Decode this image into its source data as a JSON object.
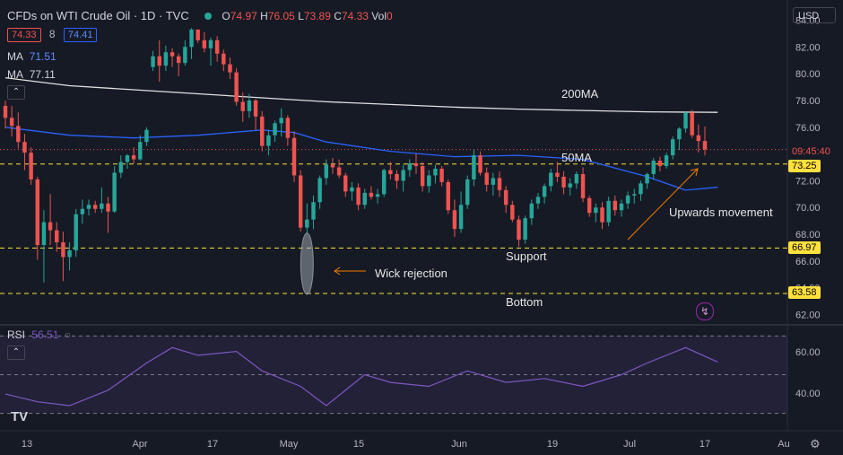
{
  "header": {
    "symbol": "CFDs on WTI Crude Oil · 1D · TVC",
    "open_label": "O",
    "open": "74.97",
    "high_label": "H",
    "high": "76.05",
    "low_label": "L",
    "low": "73.89",
    "close_label": "C",
    "close": "74.33",
    "vol_label": "Vol",
    "vol": "0",
    "bid": "74.33",
    "spread": "8",
    "ask": "74.41",
    "ma1_label": "MA",
    "ma1_value": "71.51",
    "ma2_label": "MA",
    "ma2_value": "77.11",
    "currency": "USD"
  },
  "annotations": {
    "ma200": "200MA",
    "ma50": "50MA",
    "upwards": "Upwards movement",
    "wick": "Wick rejection",
    "support": "Support",
    "bottom": "Bottom"
  },
  "price_badges": {
    "last": "09:45:40",
    "l1": "73.25",
    "l2": "66.97",
    "l3": "63.58"
  },
  "rsi": {
    "label": "RSI",
    "value": "56.51",
    "levels": [
      "60.00",
      "40.00"
    ]
  },
  "colors": {
    "up": "#26a69a",
    "down": "#ef5350",
    "ma200": "#e0e0e0",
    "ma50": "#2962ff",
    "rsi": "#7e57c2",
    "level": "#ffe03d"
  },
  "chart_data": {
    "type": "candlestick",
    "y_ticks": [
      "84.00",
      "82.00",
      "80.00",
      "78.00",
      "76.00",
      "74.00",
      "72.00",
      "70.00",
      "68.00",
      "66.00",
      "64.00",
      "62.00"
    ],
    "ylim": [
      61.5,
      84.3
    ],
    "x_ticks": [
      "13",
      "Apr",
      "17",
      "May",
      "15",
      "Jun",
      "19",
      "Jul",
      "17",
      "Au"
    ],
    "horizontal_levels": [
      73.25,
      66.97,
      63.58
    ],
    "candles": [
      [
        77.6,
        78.0,
        75.9,
        76.7
      ],
      [
        76.7,
        77.6,
        75.3,
        76.1
      ],
      [
        76.1,
        77.1,
        74.4,
        74.9
      ],
      [
        74.9,
        75.5,
        72.8,
        74.1
      ],
      [
        74.1,
        74.5,
        71.7,
        72.1
      ],
      [
        72.1,
        72.3,
        66.1,
        67.2
      ],
      [
        67.2,
        69.8,
        64.4,
        68.9
      ],
      [
        68.9,
        71.0,
        67.2,
        68.3
      ],
      [
        68.3,
        68.9,
        66.7,
        67.4
      ],
      [
        67.4,
        68.2,
        64.5,
        66.3
      ],
      [
        66.3,
        67.4,
        65.3,
        66.8
      ],
      [
        66.8,
        69.9,
        66.3,
        69.5
      ],
      [
        69.5,
        70.6,
        68.8,
        69.9
      ],
      [
        69.9,
        70.6,
        69.4,
        70.2
      ],
      [
        70.2,
        70.5,
        69.6,
        69.9
      ],
      [
        69.9,
        71.5,
        69.6,
        70.3
      ],
      [
        70.3,
        70.8,
        68.1,
        69.7
      ],
      [
        69.7,
        73.1,
        69.6,
        72.6
      ],
      [
        72.6,
        73.9,
        72.2,
        73.4
      ],
      [
        73.4,
        74.0,
        72.9,
        73.9
      ],
      [
        73.9,
        74.5,
        73.3,
        73.6
      ],
      [
        73.6,
        75.4,
        73.5,
        74.9
      ],
      [
        74.9,
        76.0,
        74.6,
        75.8
      ],
      [
        80.5,
        81.7,
        80.2,
        81.3
      ],
      [
        81.3,
        82.5,
        79.4,
        80.6
      ],
      [
        80.6,
        82.1,
        80.2,
        81.6
      ],
      [
        81.6,
        81.9,
        80.5,
        81.3
      ],
      [
        81.3,
        81.5,
        79.8,
        80.8
      ],
      [
        80.8,
        82.5,
        80.6,
        82.0
      ],
      [
        82.0,
        83.4,
        81.1,
        83.3
      ],
      [
        83.3,
        83.3,
        82.3,
        82.5
      ],
      [
        82.5,
        83.1,
        81.6,
        81.9
      ],
      [
        81.9,
        82.7,
        80.6,
        82.5
      ],
      [
        82.5,
        82.8,
        80.9,
        81.5
      ],
      [
        81.5,
        81.8,
        80.2,
        80.7
      ],
      [
        80.7,
        81.2,
        79.6,
        80.1
      ],
      [
        80.1,
        80.4,
        77.6,
        77.9
      ],
      [
        77.9,
        78.6,
        76.4,
        77.2
      ],
      [
        77.2,
        78.5,
        76.7,
        78.0
      ],
      [
        78.0,
        78.1,
        75.8,
        76.8
      ],
      [
        76.8,
        77.2,
        74.2,
        74.6
      ],
      [
        74.6,
        75.8,
        73.9,
        75.4
      ],
      [
        75.4,
        76.5,
        74.9,
        76.3
      ],
      [
        76.3,
        77.4,
        75.3,
        76.7
      ],
      [
        76.7,
        76.9,
        74.6,
        75.2
      ],
      [
        75.2,
        75.7,
        71.9,
        72.4
      ],
      [
        72.4,
        72.8,
        68.2,
        68.5
      ],
      [
        68.5,
        70.3,
        68.1,
        69.1
      ],
      [
        69.1,
        70.9,
        68.4,
        70.4
      ],
      [
        70.4,
        72.4,
        69.9,
        72.2
      ],
      [
        72.2,
        73.6,
        71.7,
        73.2
      ],
      [
        73.2,
        73.7,
        72.5,
        73.0
      ],
      [
        73.0,
        73.6,
        72.2,
        72.4
      ],
      [
        72.4,
        72.6,
        70.8,
        71.2
      ],
      [
        71.2,
        71.9,
        70.5,
        71.5
      ],
      [
        71.5,
        71.8,
        69.8,
        70.2
      ],
      [
        70.2,
        71.4,
        69.9,
        71.1
      ],
      [
        71.1,
        71.6,
        70.6,
        70.8
      ],
      [
        70.8,
        71.4,
        70.3,
        71.0
      ],
      [
        71.0,
        72.9,
        70.8,
        72.8
      ],
      [
        72.8,
        73.4,
        72.1,
        72.5
      ],
      [
        72.5,
        72.8,
        71.4,
        72.0
      ],
      [
        72.0,
        73.2,
        71.2,
        72.8
      ],
      [
        72.8,
        73.6,
        72.3,
        73.3
      ],
      [
        73.3,
        74.0,
        72.5,
        73.1
      ],
      [
        73.1,
        73.4,
        71.2,
        71.6
      ],
      [
        71.6,
        72.8,
        71.1,
        72.4
      ],
      [
        72.4,
        73.2,
        71.8,
        72.9
      ],
      [
        72.9,
        73.1,
        71.6,
        71.9
      ],
      [
        71.9,
        72.1,
        69.5,
        69.8
      ],
      [
        69.8,
        70.6,
        67.8,
        68.4
      ],
      [
        68.4,
        71.2,
        68.1,
        70.2
      ],
      [
        70.2,
        72.4,
        69.9,
        72.1
      ],
      [
        72.1,
        74.3,
        71.6,
        73.9
      ],
      [
        73.9,
        74.2,
        72.4,
        72.6
      ],
      [
        72.6,
        73.0,
        71.2,
        71.7
      ],
      [
        71.7,
        72.6,
        70.9,
        72.2
      ],
      [
        72.2,
        72.7,
        70.8,
        71.3
      ],
      [
        71.3,
        71.6,
        69.6,
        70.2
      ],
      [
        70.2,
        70.5,
        68.9,
        69.1
      ],
      [
        69.1,
        69.4,
        67.1,
        67.6
      ],
      [
        67.6,
        69.4,
        67.3,
        69.2
      ],
      [
        69.2,
        70.6,
        68.7,
        70.3
      ],
      [
        70.3,
        71.1,
        69.9,
        70.8
      ],
      [
        70.8,
        71.8,
        70.3,
        71.6
      ],
      [
        71.6,
        72.9,
        71.2,
        72.6
      ],
      [
        72.6,
        73.4,
        71.9,
        72.3
      ],
      [
        72.3,
        72.7,
        71.0,
        71.5
      ],
      [
        71.5,
        72.2,
        70.9,
        71.8
      ],
      [
        71.8,
        72.7,
        71.4,
        72.5
      ],
      [
        72.5,
        73.0,
        70.4,
        70.7
      ],
      [
        70.7,
        70.9,
        69.3,
        69.6
      ],
      [
        69.6,
        70.3,
        68.9,
        70.0
      ],
      [
        70.0,
        70.4,
        68.4,
        68.9
      ],
      [
        68.9,
        70.8,
        68.6,
        70.5
      ],
      [
        70.5,
        70.9,
        69.4,
        69.8
      ],
      [
        69.8,
        70.6,
        69.3,
        70.3
      ],
      [
        70.3,
        71.2,
        69.9,
        70.9
      ],
      [
        70.9,
        71.4,
        70.3,
        71.0
      ],
      [
        71.0,
        72.0,
        70.5,
        71.8
      ],
      [
        71.8,
        72.6,
        71.4,
        72.5
      ],
      [
        72.5,
        73.7,
        72.1,
        73.5
      ],
      [
        73.5,
        73.8,
        72.7,
        73.1
      ],
      [
        73.1,
        74.1,
        72.9,
        73.9
      ],
      [
        73.9,
        75.3,
        73.6,
        75.1
      ],
      [
        75.1,
        76.0,
        74.3,
        75.9
      ],
      [
        75.9,
        77.2,
        75.6,
        77.1
      ],
      [
        77.1,
        77.3,
        75.2,
        75.4
      ],
      [
        75.4,
        76.2,
        74.1,
        74.97
      ],
      [
        74.97,
        76.05,
        73.89,
        74.33
      ]
    ],
    "ma200": [
      [
        0,
        79.7
      ],
      [
        5,
        79.4
      ],
      [
        10,
        79.1
      ],
      [
        20,
        78.8
      ],
      [
        30,
        78.5
      ],
      [
        40,
        78.2
      ],
      [
        50,
        77.9
      ],
      [
        60,
        77.7
      ],
      [
        70,
        77.5
      ],
      [
        80,
        77.35
      ],
      [
        90,
        77.25
      ],
      [
        100,
        77.15
      ],
      [
        111,
        77.11
      ]
    ],
    "ma50": [
      [
        0,
        76.0
      ],
      [
        10,
        75.4
      ],
      [
        20,
        75.2
      ],
      [
        30,
        75.4
      ],
      [
        40,
        75.8
      ],
      [
        45,
        75.6
      ],
      [
        50,
        74.9
      ],
      [
        60,
        74.2
      ],
      [
        70,
        73.8
      ],
      [
        80,
        73.9
      ],
      [
        90,
        73.6
      ],
      [
        100,
        72.3
      ],
      [
        106,
        71.3
      ],
      [
        111,
        71.51
      ]
    ],
    "rsi_values": [
      [
        0,
        40
      ],
      [
        5,
        36
      ],
      [
        10,
        34
      ],
      [
        16,
        42
      ],
      [
        22,
        56
      ],
      [
        26,
        64
      ],
      [
        30,
        60
      ],
      [
        36,
        62
      ],
      [
        40,
        52
      ],
      [
        46,
        44
      ],
      [
        50,
        34
      ],
      [
        56,
        50
      ],
      [
        60,
        46
      ],
      [
        66,
        44
      ],
      [
        72,
        52
      ],
      [
        78,
        46
      ],
      [
        84,
        48
      ],
      [
        90,
        44
      ],
      [
        96,
        50
      ],
      [
        100,
        56
      ],
      [
        106,
        64
      ],
      [
        111,
        56.51
      ]
    ],
    "rsi_ylim": [
      28,
      72
    ]
  }
}
